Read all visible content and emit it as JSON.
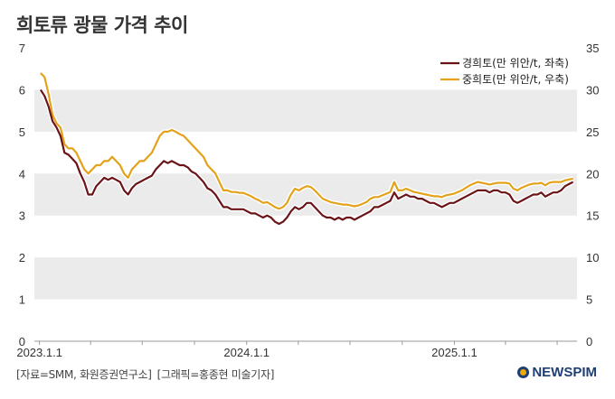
{
  "title": "희토류 광물 가격 추이",
  "footer": {
    "source": "[자료=SMM, 화원증권연구소]",
    "graphic": "[그래픽=홍종현 미술기자]"
  },
  "brand": "NEWSPIM",
  "colors": {
    "series1": "#6b1418",
    "series2": "#e3a21a",
    "band": "#ebebeb"
  },
  "chart_data": {
    "type": "line",
    "x_ticks": [
      "2023.1.1",
      "2024.1.1",
      "2025.1.1"
    ],
    "y_left_ticks": [
      "0",
      "1",
      "2",
      "3",
      "4",
      "5",
      "6",
      "7"
    ],
    "y_right_ticks": [
      "0",
      "5",
      "10",
      "15",
      "20",
      "25",
      "30",
      "35"
    ],
    "y_left_range": [
      0,
      7
    ],
    "y_right_range": [
      0,
      35
    ],
    "x_range": [
      "2022-12-23",
      "2025-08-05"
    ],
    "legend_position": "top-right",
    "grid": "alternating horizontal bands",
    "series": [
      {
        "name": "경희토(만 위안/t, 좌축)",
        "axis": "left",
        "points": [
          [
            "2023-01-03",
            6.0
          ],
          [
            "2023-01-10",
            5.85
          ],
          [
            "2023-01-17",
            5.6
          ],
          [
            "2023-01-24",
            5.25
          ],
          [
            "2023-01-31",
            5.1
          ],
          [
            "2023-02-07",
            4.9
          ],
          [
            "2023-02-14",
            4.5
          ],
          [
            "2023-02-21",
            4.45
          ],
          [
            "2023-02-28",
            4.35
          ],
          [
            "2023-03-07",
            4.25
          ],
          [
            "2023-03-14",
            4.0
          ],
          [
            "2023-03-21",
            3.8
          ],
          [
            "2023-03-28",
            3.5
          ],
          [
            "2023-04-04",
            3.5
          ],
          [
            "2023-04-11",
            3.7
          ],
          [
            "2023-04-18",
            3.8
          ],
          [
            "2023-04-25",
            3.9
          ],
          [
            "2023-05-02",
            3.85
          ],
          [
            "2023-05-09",
            3.9
          ],
          [
            "2023-05-16",
            3.85
          ],
          [
            "2023-05-23",
            3.8
          ],
          [
            "2023-05-30",
            3.6
          ],
          [
            "2023-06-06",
            3.5
          ],
          [
            "2023-06-13",
            3.65
          ],
          [
            "2023-06-20",
            3.75
          ],
          [
            "2023-06-27",
            3.8
          ],
          [
            "2023-07-04",
            3.85
          ],
          [
            "2023-07-11",
            3.9
          ],
          [
            "2023-07-18",
            3.95
          ],
          [
            "2023-07-25",
            4.1
          ],
          [
            "2023-08-01",
            4.2
          ],
          [
            "2023-08-08",
            4.3
          ],
          [
            "2023-08-15",
            4.25
          ],
          [
            "2023-08-22",
            4.3
          ],
          [
            "2023-08-29",
            4.25
          ],
          [
            "2023-09-05",
            4.2
          ],
          [
            "2023-09-12",
            4.2
          ],
          [
            "2023-09-19",
            4.15
          ],
          [
            "2023-09-26",
            4.05
          ],
          [
            "2023-10-03",
            4.0
          ],
          [
            "2023-10-10",
            3.9
          ],
          [
            "2023-10-17",
            3.8
          ],
          [
            "2023-10-24",
            3.65
          ],
          [
            "2023-10-31",
            3.6
          ],
          [
            "2023-11-07",
            3.5
          ],
          [
            "2023-11-14",
            3.35
          ],
          [
            "2023-11-21",
            3.2
          ],
          [
            "2023-11-28",
            3.2
          ],
          [
            "2023-12-05",
            3.15
          ],
          [
            "2023-12-12",
            3.15
          ],
          [
            "2023-12-19",
            3.15
          ],
          [
            "2023-12-26",
            3.15
          ],
          [
            "2024-01-02",
            3.1
          ],
          [
            "2024-01-09",
            3.05
          ],
          [
            "2024-01-16",
            3.05
          ],
          [
            "2024-01-23",
            3.0
          ],
          [
            "2024-01-30",
            2.95
          ],
          [
            "2024-02-06",
            3.0
          ],
          [
            "2024-02-13",
            2.95
          ],
          [
            "2024-02-20",
            2.85
          ],
          [
            "2024-02-27",
            2.8
          ],
          [
            "2024-03-05",
            2.85
          ],
          [
            "2024-03-12",
            2.95
          ],
          [
            "2024-03-19",
            3.1
          ],
          [
            "2024-03-26",
            3.2
          ],
          [
            "2024-04-02",
            3.15
          ],
          [
            "2024-04-09",
            3.2
          ],
          [
            "2024-04-16",
            3.3
          ],
          [
            "2024-04-23",
            3.3
          ],
          [
            "2024-04-30",
            3.2
          ],
          [
            "2024-05-07",
            3.1
          ],
          [
            "2024-05-14",
            3.0
          ],
          [
            "2024-05-21",
            2.95
          ],
          [
            "2024-05-28",
            2.95
          ],
          [
            "2024-06-04",
            2.9
          ],
          [
            "2024-06-11",
            2.95
          ],
          [
            "2024-06-18",
            2.9
          ],
          [
            "2024-06-25",
            2.95
          ],
          [
            "2024-07-02",
            2.95
          ],
          [
            "2024-07-09",
            2.9
          ],
          [
            "2024-07-16",
            2.95
          ],
          [
            "2024-07-23",
            3.0
          ],
          [
            "2024-07-30",
            3.05
          ],
          [
            "2024-08-06",
            3.1
          ],
          [
            "2024-08-13",
            3.2
          ],
          [
            "2024-08-20",
            3.2
          ],
          [
            "2024-08-27",
            3.25
          ],
          [
            "2024-09-03",
            3.3
          ],
          [
            "2024-09-10",
            3.35
          ],
          [
            "2024-09-17",
            3.55
          ],
          [
            "2024-09-24",
            3.4
          ],
          [
            "2024-10-01",
            3.45
          ],
          [
            "2024-10-08",
            3.5
          ],
          [
            "2024-10-15",
            3.45
          ],
          [
            "2024-10-22",
            3.45
          ],
          [
            "2024-10-29",
            3.4
          ],
          [
            "2024-11-05",
            3.4
          ],
          [
            "2024-11-12",
            3.35
          ],
          [
            "2024-11-19",
            3.3
          ],
          [
            "2024-11-26",
            3.3
          ],
          [
            "2024-12-03",
            3.25
          ],
          [
            "2024-12-10",
            3.2
          ],
          [
            "2024-12-17",
            3.25
          ],
          [
            "2024-12-24",
            3.3
          ],
          [
            "2024-12-31",
            3.3
          ],
          [
            "2025-01-07",
            3.35
          ],
          [
            "2025-01-14",
            3.4
          ],
          [
            "2025-01-21",
            3.45
          ],
          [
            "2025-01-28",
            3.5
          ],
          [
            "2025-02-04",
            3.55
          ],
          [
            "2025-02-11",
            3.6
          ],
          [
            "2025-02-18",
            3.6
          ],
          [
            "2025-02-25",
            3.6
          ],
          [
            "2025-03-04",
            3.55
          ],
          [
            "2025-03-11",
            3.6
          ],
          [
            "2025-03-18",
            3.6
          ],
          [
            "2025-03-25",
            3.55
          ],
          [
            "2025-04-01",
            3.55
          ],
          [
            "2025-04-08",
            3.5
          ],
          [
            "2025-04-15",
            3.35
          ],
          [
            "2025-04-22",
            3.3
          ],
          [
            "2025-04-29",
            3.35
          ],
          [
            "2025-05-06",
            3.4
          ],
          [
            "2025-05-13",
            3.45
          ],
          [
            "2025-05-20",
            3.5
          ],
          [
            "2025-05-27",
            3.5
          ],
          [
            "2025-06-03",
            3.55
          ],
          [
            "2025-06-10",
            3.45
          ],
          [
            "2025-06-17",
            3.5
          ],
          [
            "2025-06-24",
            3.55
          ],
          [
            "2025-07-01",
            3.55
          ],
          [
            "2025-07-08",
            3.6
          ],
          [
            "2025-07-15",
            3.7
          ],
          [
            "2025-07-22",
            3.75
          ],
          [
            "2025-07-29",
            3.8
          ]
        ]
      },
      {
        "name": "중희토(만 위안/t, 우축)",
        "axis": "right",
        "points": [
          [
            "2023-01-03",
            32.0
          ],
          [
            "2023-01-10",
            31.5
          ],
          [
            "2023-01-17",
            29.5
          ],
          [
            "2023-01-24",
            27.0
          ],
          [
            "2023-01-31",
            26.0
          ],
          [
            "2023-02-07",
            25.5
          ],
          [
            "2023-02-14",
            23.5
          ],
          [
            "2023-02-21",
            23.0
          ],
          [
            "2023-02-28",
            23.0
          ],
          [
            "2023-03-07",
            22.5
          ],
          [
            "2023-03-14",
            21.5
          ],
          [
            "2023-03-21",
            20.5
          ],
          [
            "2023-03-28",
            20.0
          ],
          [
            "2023-04-04",
            20.5
          ],
          [
            "2023-04-11",
            21.0
          ],
          [
            "2023-04-18",
            21.0
          ],
          [
            "2023-04-25",
            21.5
          ],
          [
            "2023-05-02",
            21.5
          ],
          [
            "2023-05-09",
            22.0
          ],
          [
            "2023-05-16",
            21.5
          ],
          [
            "2023-05-23",
            21.0
          ],
          [
            "2023-05-30",
            20.0
          ],
          [
            "2023-06-06",
            19.5
          ],
          [
            "2023-06-13",
            20.5
          ],
          [
            "2023-06-20",
            21.0
          ],
          [
            "2023-06-27",
            21.5
          ],
          [
            "2023-07-04",
            21.5
          ],
          [
            "2023-07-11",
            22.0
          ],
          [
            "2023-07-18",
            22.5
          ],
          [
            "2023-07-25",
            23.5
          ],
          [
            "2023-08-01",
            24.5
          ],
          [
            "2023-08-08",
            25.0
          ],
          [
            "2023-08-15",
            25.0
          ],
          [
            "2023-08-22",
            25.2
          ],
          [
            "2023-08-29",
            25.0
          ],
          [
            "2023-09-05",
            24.7
          ],
          [
            "2023-09-12",
            24.5
          ],
          [
            "2023-09-19",
            24.0
          ],
          [
            "2023-09-26",
            23.5
          ],
          [
            "2023-10-03",
            23.0
          ],
          [
            "2023-10-10",
            22.5
          ],
          [
            "2023-10-17",
            22.0
          ],
          [
            "2023-10-24",
            21.0
          ],
          [
            "2023-10-31",
            20.5
          ],
          [
            "2023-11-07",
            20.0
          ],
          [
            "2023-11-14",
            19.0
          ],
          [
            "2023-11-21",
            18.0
          ],
          [
            "2023-11-28",
            18.0
          ],
          [
            "2023-12-05",
            17.8
          ],
          [
            "2023-12-12",
            17.8
          ],
          [
            "2023-12-19",
            17.7
          ],
          [
            "2023-12-26",
            17.7
          ],
          [
            "2024-01-02",
            17.5
          ],
          [
            "2024-01-09",
            17.3
          ],
          [
            "2024-01-16",
            17.0
          ],
          [
            "2024-01-23",
            16.8
          ],
          [
            "2024-01-30",
            16.5
          ],
          [
            "2024-02-06",
            16.6
          ],
          [
            "2024-02-13",
            16.3
          ],
          [
            "2024-02-20",
            16.0
          ],
          [
            "2024-02-27",
            15.8
          ],
          [
            "2024-03-05",
            16.0
          ],
          [
            "2024-03-12",
            16.5
          ],
          [
            "2024-03-19",
            17.5
          ],
          [
            "2024-03-26",
            18.2
          ],
          [
            "2024-04-02",
            18.0
          ],
          [
            "2024-04-09",
            18.3
          ],
          [
            "2024-04-16",
            18.5
          ],
          [
            "2024-04-23",
            18.4
          ],
          [
            "2024-04-30",
            18.0
          ],
          [
            "2024-05-07",
            17.5
          ],
          [
            "2024-05-14",
            17.0
          ],
          [
            "2024-05-21",
            16.8
          ],
          [
            "2024-05-28",
            16.6
          ],
          [
            "2024-06-04",
            16.5
          ],
          [
            "2024-06-11",
            16.4
          ],
          [
            "2024-06-18",
            16.3
          ],
          [
            "2024-06-25",
            16.3
          ],
          [
            "2024-07-02",
            16.2
          ],
          [
            "2024-07-09",
            16.1
          ],
          [
            "2024-07-16",
            16.2
          ],
          [
            "2024-07-23",
            16.4
          ],
          [
            "2024-07-30",
            16.6
          ],
          [
            "2024-08-06",
            17.0
          ],
          [
            "2024-08-13",
            17.2
          ],
          [
            "2024-08-20",
            17.2
          ],
          [
            "2024-08-27",
            17.4
          ],
          [
            "2024-09-03",
            17.6
          ],
          [
            "2024-09-10",
            17.8
          ],
          [
            "2024-09-17",
            19.0
          ],
          [
            "2024-09-24",
            18.0
          ],
          [
            "2024-10-01",
            18.0
          ],
          [
            "2024-10-08",
            18.2
          ],
          [
            "2024-10-15",
            18.0
          ],
          [
            "2024-10-22",
            17.8
          ],
          [
            "2024-10-29",
            17.7
          ],
          [
            "2024-11-05",
            17.6
          ],
          [
            "2024-11-12",
            17.5
          ],
          [
            "2024-11-19",
            17.4
          ],
          [
            "2024-11-26",
            17.3
          ],
          [
            "2024-12-03",
            17.3
          ],
          [
            "2024-12-10",
            17.2
          ],
          [
            "2024-12-17",
            17.4
          ],
          [
            "2024-12-24",
            17.5
          ],
          [
            "2024-12-31",
            17.6
          ],
          [
            "2025-01-07",
            17.8
          ],
          [
            "2025-01-14",
            18.0
          ],
          [
            "2025-01-21",
            18.3
          ],
          [
            "2025-01-28",
            18.6
          ],
          [
            "2025-02-04",
            18.8
          ],
          [
            "2025-02-11",
            19.0
          ],
          [
            "2025-02-18",
            18.9
          ],
          [
            "2025-02-25",
            18.8
          ],
          [
            "2025-03-04",
            18.7
          ],
          [
            "2025-03-11",
            18.8
          ],
          [
            "2025-03-18",
            18.9
          ],
          [
            "2025-03-25",
            18.9
          ],
          [
            "2025-04-01",
            18.9
          ],
          [
            "2025-04-08",
            18.8
          ],
          [
            "2025-04-15",
            18.2
          ],
          [
            "2025-04-22",
            18.0
          ],
          [
            "2025-04-29",
            18.3
          ],
          [
            "2025-05-06",
            18.5
          ],
          [
            "2025-05-13",
            18.7
          ],
          [
            "2025-05-20",
            18.8
          ],
          [
            "2025-05-27",
            18.8
          ],
          [
            "2025-06-03",
            18.9
          ],
          [
            "2025-06-10",
            18.6
          ],
          [
            "2025-06-17",
            18.9
          ],
          [
            "2025-06-24",
            19.0
          ],
          [
            "2025-07-01",
            19.0
          ],
          [
            "2025-07-08",
            19.0
          ],
          [
            "2025-07-15",
            19.2
          ],
          [
            "2025-07-22",
            19.3
          ],
          [
            "2025-07-29",
            19.4
          ]
        ]
      }
    ]
  }
}
